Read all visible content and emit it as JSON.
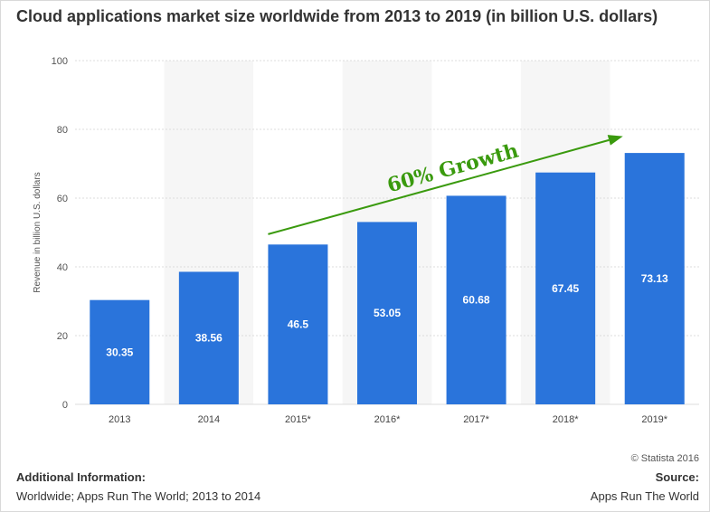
{
  "page": {
    "title": "Cloud applications market size worldwide from 2013 to 2019 (in billion U.S. dollars)",
    "copyright": "© Statista 2016",
    "additional_info_title": "Additional Information:",
    "additional_info_text": "Worldwide; Apps Run The World; 2013 to 2014",
    "source_title": "Source:",
    "source_text": "Apps Run The World"
  },
  "chart_data": {
    "type": "bar",
    "title": "Cloud applications market size worldwide from 2013 to 2019 (in billion U.S. dollars)",
    "xlabel": "",
    "ylabel": "Revenue in billion U.S. dollars",
    "categories": [
      "2013",
      "2014",
      "2015*",
      "2016*",
      "2017*",
      "2018*",
      "2019*"
    ],
    "values": [
      30.35,
      38.56,
      46.5,
      53.05,
      60.68,
      67.45,
      73.13
    ],
    "value_labels": [
      "30.35",
      "38.56",
      "46.5",
      "53.05",
      "60.68",
      "67.45",
      "73.13"
    ],
    "ylim": [
      0,
      100
    ],
    "yticks": [
      0,
      20,
      40,
      60,
      80,
      100
    ],
    "grid": true,
    "bar_color": "#2a74db",
    "annotation": {
      "text": "60% Growth",
      "color": "#3a9a0e",
      "arrow_from": {
        "x": "2015*",
        "y": 49.5
      },
      "arrow_to": {
        "x": "2019*",
        "y": 78
      }
    }
  }
}
